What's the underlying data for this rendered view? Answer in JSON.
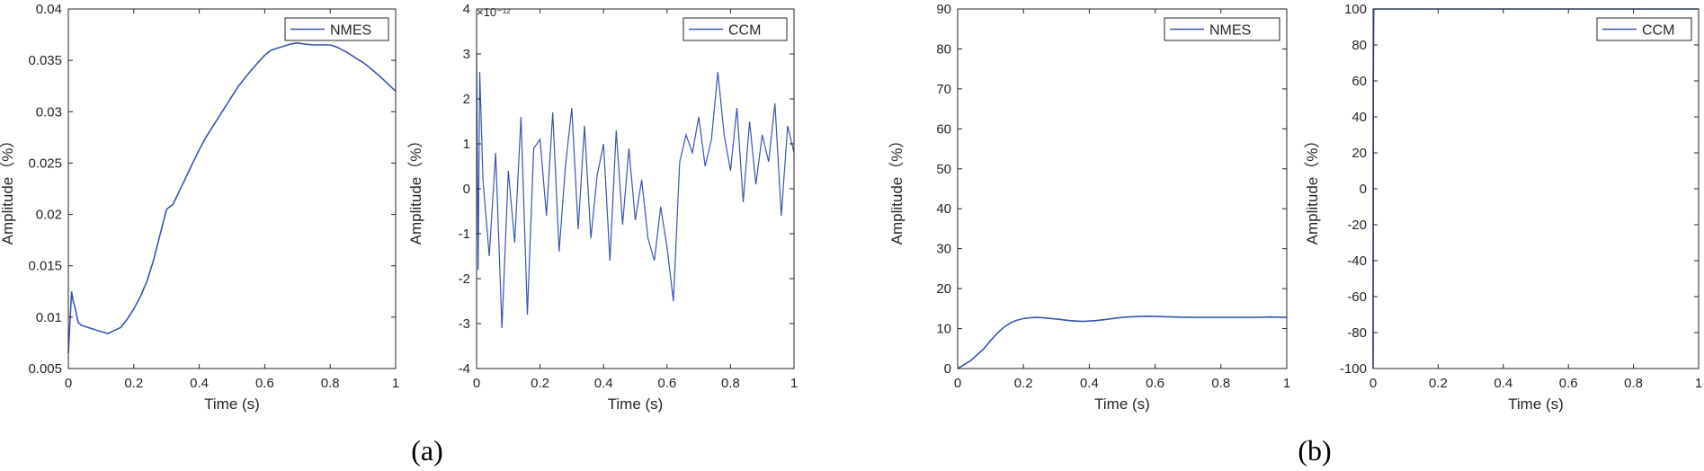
{
  "panels": [
    {
      "label": "(a)"
    },
    {
      "label": "(b)"
    }
  ],
  "chart_data": [
    {
      "type": "line",
      "xlabel": "Time (s)",
      "ylabel": "Amplitude（%）",
      "xlim": [
        0,
        1
      ],
      "ylim": [
        0.005,
        0.04
      ],
      "xticks": [
        0,
        0.2,
        0.4,
        0.6,
        0.8,
        1
      ],
      "xticklabels": [
        "0",
        "0.2",
        "0.4",
        "0.6",
        "0.8",
        "1"
      ],
      "yticks": [
        0.005,
        0.01,
        0.015,
        0.02,
        0.025,
        0.03,
        0.035,
        0.04
      ],
      "yticklabels": [
        "0.005",
        "0.01",
        "0.015",
        "0.02",
        "0.025",
        "0.03",
        "0.035",
        "0.04"
      ],
      "legend_position": "top-right",
      "series": [
        {
          "name": "NMES",
          "color": "#3a55b0",
          "x": [
            0,
            0.005,
            0.01,
            0.015,
            0.02,
            0.03,
            0.04,
            0.06,
            0.08,
            0.1,
            0.12,
            0.14,
            0.16,
            0.18,
            0.2,
            0.22,
            0.24,
            0.26,
            0.28,
            0.3,
            0.32,
            0.35,
            0.38,
            0.4,
            0.42,
            0.45,
            0.48,
            0.5,
            0.52,
            0.55,
            0.58,
            0.6,
            0.62,
            0.64,
            0.66,
            0.68,
            0.7,
            0.72,
            0.75,
            0.78,
            0.8,
            0.82,
            0.85,
            0.88,
            0.9,
            0.92,
            0.95,
            0.98,
            1.0
          ],
          "y": [
            0.0065,
            0.0095,
            0.0125,
            0.0115,
            0.011,
            0.0095,
            0.0092,
            0.009,
            0.0088,
            0.0086,
            0.0084,
            0.0087,
            0.009,
            0.0098,
            0.0108,
            0.012,
            0.0135,
            0.0155,
            0.018,
            0.0205,
            0.021,
            0.023,
            0.025,
            0.0263,
            0.0275,
            0.029,
            0.0305,
            0.0315,
            0.0325,
            0.0337,
            0.0348,
            0.0355,
            0.036,
            0.0362,
            0.0364,
            0.0366,
            0.0367,
            0.0366,
            0.0365,
            0.0365,
            0.0365,
            0.0363,
            0.0358,
            0.0352,
            0.0348,
            0.0343,
            0.0335,
            0.0326,
            0.032
          ]
        }
      ]
    },
    {
      "type": "line",
      "xlabel": "Time (s)",
      "ylabel": "Amplitude（%）",
      "exponent_label": "×10⁻¹²",
      "xlim": [
        0,
        1
      ],
      "ylim": [
        -4,
        4
      ],
      "xticks": [
        0,
        0.2,
        0.4,
        0.6,
        0.8,
        1
      ],
      "xticklabels": [
        "0",
        "0.2",
        "0.4",
        "0.6",
        "0.8",
        "1"
      ],
      "yticks": [
        -4,
        -3,
        -2,
        -1,
        0,
        1,
        2,
        3,
        4
      ],
      "yticklabels": [
        "-4",
        "-3",
        "-2",
        "-1",
        "0",
        "1",
        "2",
        "3",
        "4"
      ],
      "legend_position": "top-right",
      "series": [
        {
          "name": "CCM",
          "color": "#3a55b0",
          "x": [
            0,
            0.005,
            0.01,
            0.02,
            0.04,
            0.06,
            0.08,
            0.1,
            0.12,
            0.14,
            0.16,
            0.18,
            0.2,
            0.22,
            0.24,
            0.26,
            0.28,
            0.3,
            0.32,
            0.34,
            0.36,
            0.38,
            0.4,
            0.42,
            0.44,
            0.46,
            0.48,
            0.5,
            0.52,
            0.54,
            0.56,
            0.58,
            0.6,
            0.62,
            0.64,
            0.66,
            0.68,
            0.7,
            0.72,
            0.74,
            0.76,
            0.78,
            0.8,
            0.82,
            0.84,
            0.86,
            0.88,
            0.9,
            0.92,
            0.94,
            0.96,
            0.98,
            1.0
          ],
          "y": [
            3.0,
            -1.8,
            2.6,
            0.2,
            -1.5,
            0.8,
            -3.1,
            0.4,
            -1.2,
            1.6,
            -2.8,
            0.9,
            1.1,
            -0.6,
            1.7,
            -1.4,
            0.5,
            1.8,
            -0.9,
            1.4,
            -1.1,
            0.3,
            1.0,
            -1.6,
            1.3,
            -0.8,
            0.9,
            -0.7,
            0.2,
            -1.1,
            -1.6,
            -0.4,
            -1.3,
            -2.5,
            0.6,
            1.2,
            0.8,
            1.6,
            0.5,
            1.1,
            2.6,
            1.2,
            0.4,
            1.8,
            -0.3,
            1.5,
            0.1,
            1.2,
            0.6,
            1.9,
            -0.6,
            1.4,
            0.8
          ]
        }
      ]
    },
    {
      "type": "line",
      "xlabel": "Time (s)",
      "ylabel": "Amplitude（%）",
      "xlim": [
        0,
        1
      ],
      "ylim": [
        0,
        90
      ],
      "xticks": [
        0,
        0.2,
        0.4,
        0.6,
        0.8,
        1
      ],
      "xticklabels": [
        "0",
        "0.2",
        "0.4",
        "0.6",
        "0.8",
        "1"
      ],
      "yticks": [
        0,
        10,
        20,
        30,
        40,
        50,
        60,
        70,
        80,
        90
      ],
      "yticklabels": [
        "0",
        "10",
        "20",
        "30",
        "40",
        "50",
        "60",
        "70",
        "80",
        "90"
      ],
      "legend_position": "top-right",
      "series": [
        {
          "name": "NMES",
          "color": "#3a55b0",
          "x": [
            0,
            0.01,
            0.02,
            0.04,
            0.06,
            0.08,
            0.1,
            0.12,
            0.14,
            0.16,
            0.18,
            0.2,
            0.22,
            0.24,
            0.26,
            0.3,
            0.34,
            0.38,
            0.42,
            0.46,
            0.5,
            0.54,
            0.58,
            0.62,
            0.66,
            0.7,
            0.75,
            0.8,
            0.85,
            0.9,
            0.95,
            1.0
          ],
          "y": [
            0,
            0.5,
            1.0,
            2.0,
            3.5,
            5.0,
            7.0,
            8.8,
            10.3,
            11.4,
            12.1,
            12.5,
            12.7,
            12.8,
            12.7,
            12.4,
            12.0,
            11.8,
            12.0,
            12.4,
            12.8,
            13.0,
            13.1,
            13.0,
            12.9,
            12.8,
            12.8,
            12.8,
            12.8,
            12.8,
            12.9,
            12.8
          ]
        }
      ]
    },
    {
      "type": "line",
      "xlabel": "Time (s)",
      "ylabel": "Amplitude（%）",
      "xlim": [
        0,
        1
      ],
      "ylim": [
        -100,
        100
      ],
      "xticks": [
        0,
        0.2,
        0.4,
        0.6,
        0.8,
        1
      ],
      "xticklabels": [
        "0",
        "0.2",
        "0.4",
        "0.6",
        "0.8",
        "1"
      ],
      "yticks": [
        -100,
        -80,
        -60,
        -40,
        -20,
        0,
        20,
        40,
        60,
        80,
        100
      ],
      "yticklabels": [
        "-100",
        "-80",
        "-60",
        "-40",
        "-20",
        "0",
        "20",
        "40",
        "60",
        "80",
        "100"
      ],
      "legend_position": "top-right",
      "series": [
        {
          "name": "CCM",
          "color": "#3a55b0",
          "x": [
            0,
            0.0005,
            0.002,
            0.005,
            0.1,
            0.3,
            0.5,
            0.7,
            0.9,
            1.0
          ],
          "y": [
            -100,
            60,
            99.5,
            100,
            100,
            100,
            100,
            100,
            100,
            100
          ]
        }
      ]
    }
  ]
}
